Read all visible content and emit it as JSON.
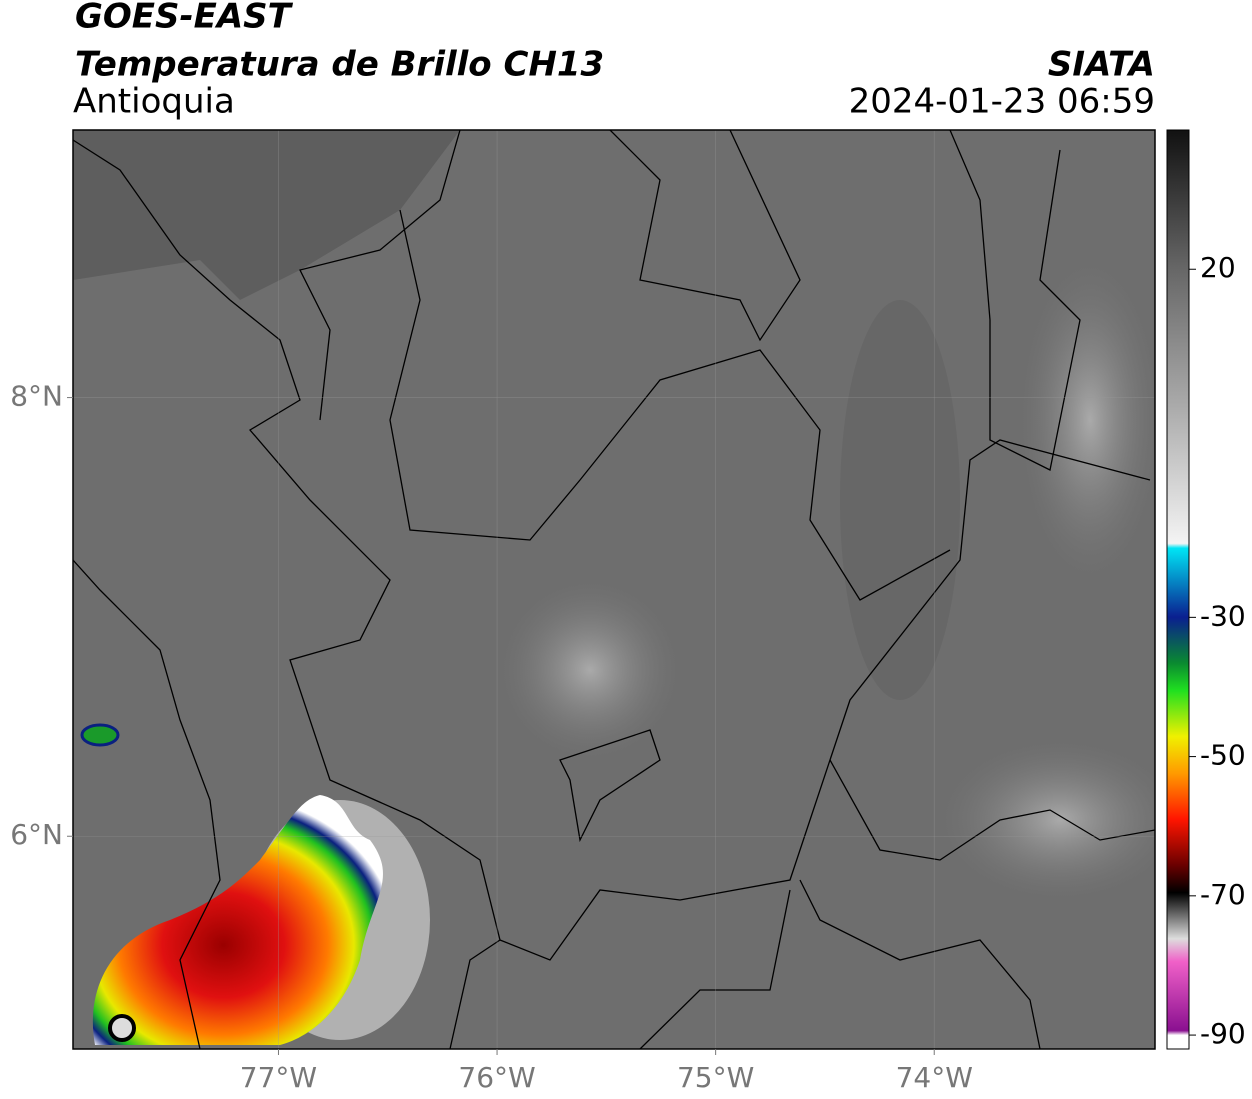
{
  "header": {
    "title": "GOES-EAST",
    "subtitle": "Temperatura de Brillo CH13",
    "region": "Antioquia",
    "source": "SIATA",
    "datetime": "2024-01-23 06:59"
  },
  "map": {
    "xlim": [
      -77.94,
      -72.99
    ],
    "ylim": [
      5.03,
      9.22
    ],
    "xticks": [
      {
        "value": -77,
        "label": "77°W"
      },
      {
        "value": -76,
        "label": "76°W"
      },
      {
        "value": -75,
        "label": "75°W"
      },
      {
        "value": -74,
        "label": "74°W"
      }
    ],
    "yticks": [
      {
        "value": 8,
        "label": "8°N"
      },
      {
        "value": 6,
        "label": "6°N"
      }
    ],
    "grid": true
  },
  "colorbar": {
    "lim": [
      -92,
      40
    ],
    "ticks": [
      20,
      -30,
      -50,
      -70,
      -90
    ]
  }
}
